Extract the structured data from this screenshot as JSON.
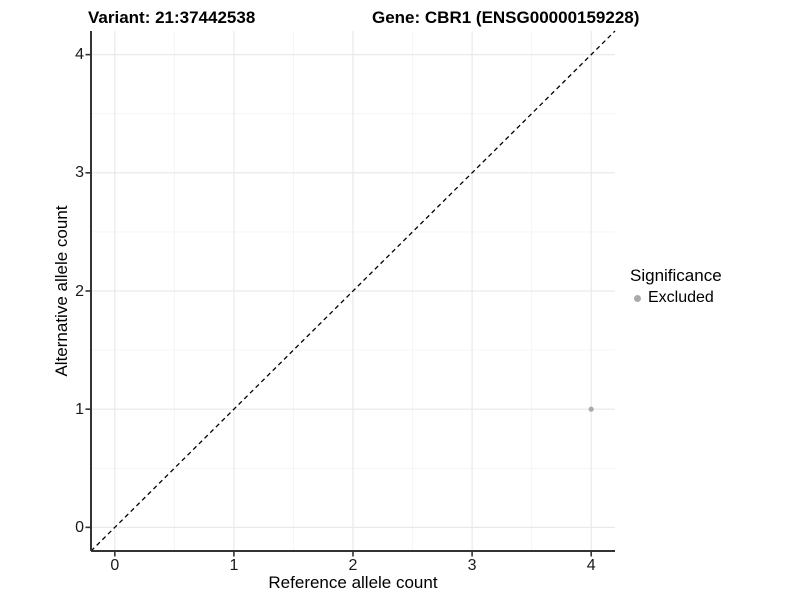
{
  "chart_data": {
    "type": "scatter",
    "titles": [
      "Variant: 21:37442538",
      "Gene: CBR1 (ENSG00000159228)"
    ],
    "xlabel": "Reference allele count",
    "ylabel": "Alternative allele count",
    "xlim": [
      -0.2,
      4.2
    ],
    "ylim": [
      -0.2,
      4.2
    ],
    "x_ticks": [
      0,
      1,
      2,
      3,
      4
    ],
    "y_ticks": [
      0,
      1,
      2,
      3,
      4
    ],
    "grid": {
      "major": true,
      "minor": true
    },
    "reference_line": {
      "slope": 1,
      "intercept": 0,
      "style": "dashed",
      "color": "#000000"
    },
    "series": [
      {
        "name": "Excluded",
        "color": "#aaaaaa",
        "points": [
          {
            "x": 4,
            "y": 1
          }
        ]
      }
    ],
    "legend": {
      "title": "Significance",
      "position": "right",
      "items": [
        {
          "label": "Excluded",
          "color": "#aaaaaa"
        }
      ]
    }
  },
  "colors": {
    "background": "#ffffff",
    "grid_major": "#e9e9e9",
    "grid_minor": "#f4f4f4",
    "axis_line": "#333333",
    "tick_mark": "#333333",
    "tick_label": "#1a1a1a",
    "title_text": "#000000"
  }
}
